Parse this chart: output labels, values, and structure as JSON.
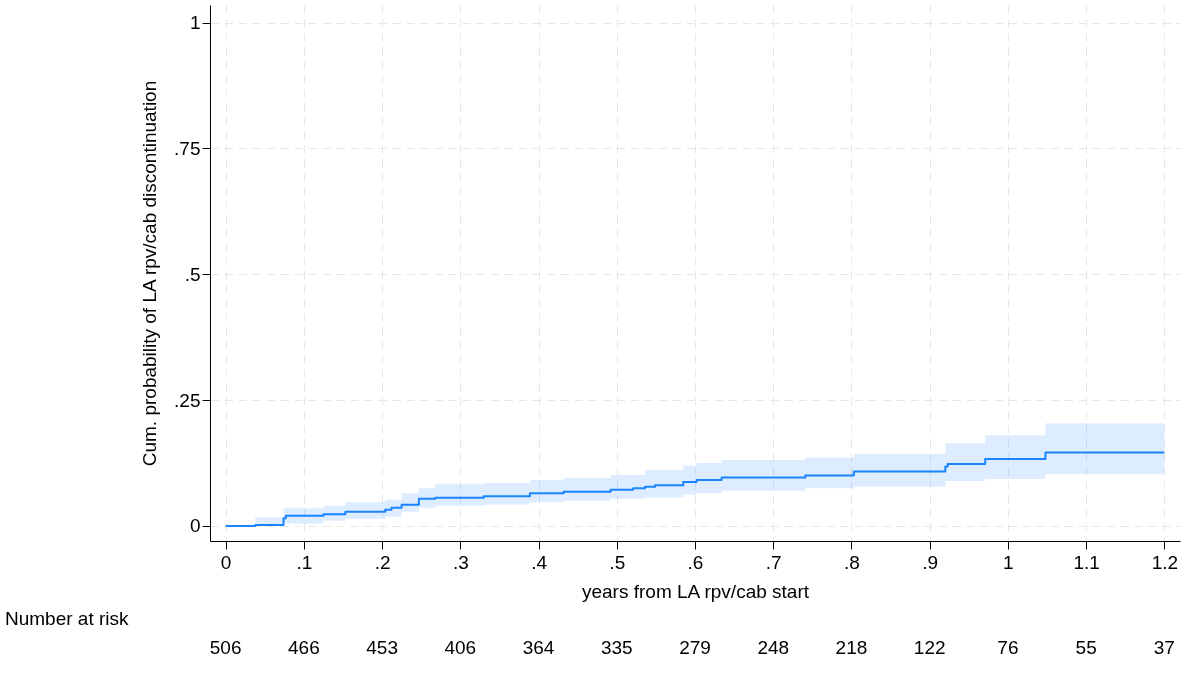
{
  "chart_data": {
    "type": "step",
    "xlabel": "years from LA rpv/cab start",
    "ylabel": "Cum. probability of LA rpv/cab discontinuation",
    "x": [
      0,
      0.038,
      0.074,
      0.077,
      0.125,
      0.153,
      0.204,
      0.212,
      0.225,
      0.247,
      0.268,
      0.33,
      0.389,
      0.432,
      0.492,
      0.521,
      0.536,
      0.549,
      0.585,
      0.602,
      0.634,
      0.741,
      0.803,
      0.92,
      0.923,
      0.971,
      1.048,
      1.2
    ],
    "series": [
      {
        "color": "#1a85ff",
        "values": [
          0,
          0.002,
          0.015,
          0.02,
          0.023,
          0.028,
          0.032,
          0.036,
          0.042,
          0.054,
          0.056,
          0.059,
          0.065,
          0.068,
          0.072,
          0.075,
          0.078,
          0.081,
          0.087,
          0.091,
          0.096,
          0.1,
          0.108,
          0.118,
          0.123,
          0.133,
          0.146,
          0.146
        ],
        "lower": [
          0,
          0,
          0.005,
          0.005,
          0.01,
          0.014,
          0.018,
          0.018,
          0.028,
          0.036,
          0.04,
          0.042,
          0.047,
          0.05,
          0.054,
          0.054,
          0.056,
          0.056,
          0.062,
          0.065,
          0.07,
          0.075,
          0.078,
          0.089,
          0.089,
          0.093,
          0.103,
          0.103
        ],
        "upper": [
          0,
          0.017,
          0.035,
          0.035,
          0.04,
          0.047,
          0.052,
          0.052,
          0.065,
          0.075,
          0.083,
          0.085,
          0.091,
          0.095,
          0.101,
          0.101,
          0.111,
          0.111,
          0.12,
          0.125,
          0.131,
          0.136,
          0.143,
          0.164,
          0.164,
          0.18,
          0.204,
          0.204
        ]
      }
    ],
    "xlim": [
      -0.02,
      1.22
    ],
    "ylim": [
      -0.03,
      1.035
    ],
    "xticks": [
      0,
      {
        "value": 0.1,
        "label": ".1"
      },
      {
        "value": 0.2,
        "label": ".2"
      },
      {
        "value": 0.3,
        "label": ".3"
      },
      {
        "value": 0.4,
        "label": ".4"
      },
      {
        "value": 0.5,
        "label": ".5"
      },
      {
        "value": 0.6,
        "label": ".6"
      },
      {
        "value": 0.7,
        "label": ".7"
      },
      {
        "value": 0.8,
        "label": ".8"
      },
      {
        "value": 0.9,
        "label": ".9"
      },
      1,
      1.1,
      1.2
    ],
    "yticks": [
      0,
      {
        "value": 0.25,
        "label": ".25"
      },
      {
        "value": 0.5,
        "label": ".5"
      },
      {
        "value": 0.75,
        "label": ".75"
      },
      1
    ],
    "grid": true,
    "annotations": [
      "Number at risk",
      "506",
      "466",
      "453",
      "406",
      "364",
      "335",
      "279",
      "248",
      "218",
      "122",
      "76",
      "55",
      "37"
    ]
  }
}
